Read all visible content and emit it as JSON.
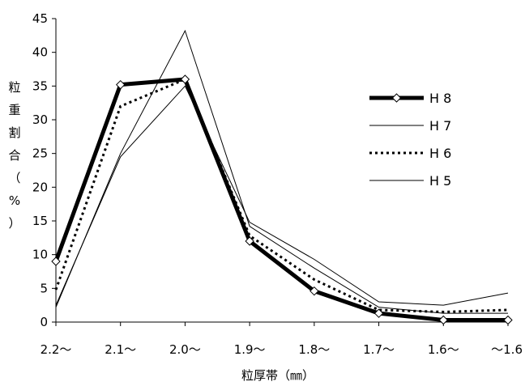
{
  "chart_data": {
    "type": "line",
    "xlabel": "粒厚帯（㎜）",
    "ylabel": "粒重割合（%）",
    "ylabel_chars": [
      "粒",
      "重",
      "割",
      "合",
      "（",
      "%",
      "）"
    ],
    "categories": [
      "2.2〜",
      "2.1〜",
      "2.0〜",
      "1.9〜",
      "1.8〜",
      "1.7〜",
      "1.6〜",
      "〜1.6"
    ],
    "ylim": [
      0,
      45
    ],
    "yticks": [
      0,
      5,
      10,
      15,
      20,
      25,
      30,
      35,
      40,
      45
    ],
    "grid": false,
    "legend_position": "right",
    "series": [
      {
        "name": "H 8",
        "style": "bold-diamond",
        "color": "#000000",
        "values": [
          9,
          35.2,
          36,
          12,
          4.6,
          1.3,
          0.3,
          0.3
        ]
      },
      {
        "name": "H 7",
        "style": "thin",
        "color": "#000000",
        "values": [
          2.2,
          25,
          43.2,
          14.2,
          8,
          2.2,
          1.3,
          1.3
        ]
      },
      {
        "name": "H 6",
        "style": "dotted",
        "color": "#000000",
        "values": [
          4.8,
          32,
          36,
          12.8,
          6.3,
          1.8,
          1.5,
          1.8
        ]
      },
      {
        "name": "H 5",
        "style": "thin",
        "color": "#000000",
        "values": [
          2.5,
          24.5,
          35,
          14.8,
          9.3,
          3,
          2.5,
          4.3
        ]
      }
    ]
  }
}
